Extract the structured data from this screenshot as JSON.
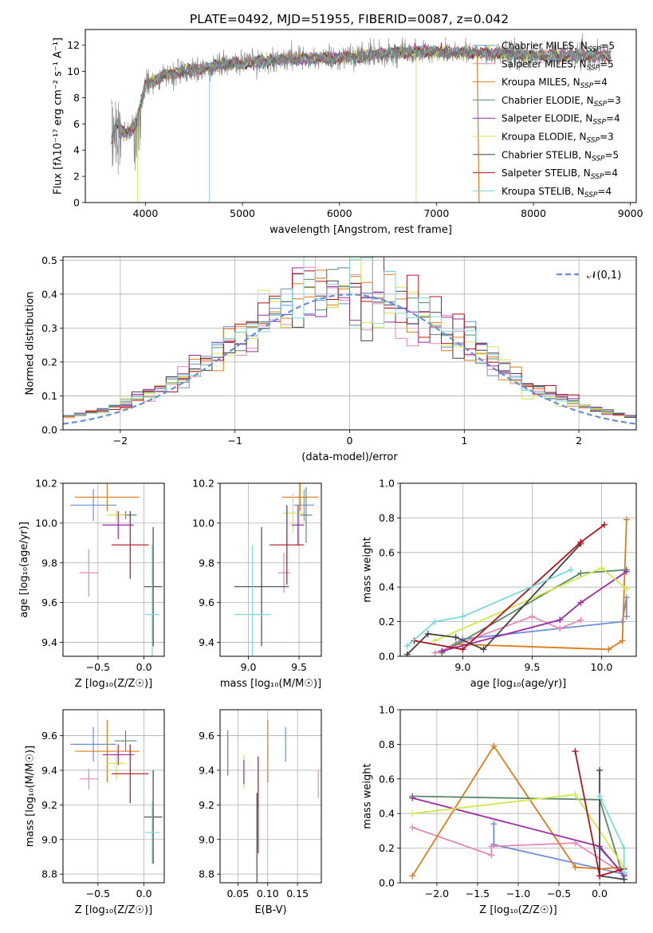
{
  "figure_title": "PLATE=0492, MJD=51955, FIBERID=0087, z=0.042",
  "colors": {
    "Chabrier MILES": "#6b8fd6",
    "Salpeter MILES": "#e687b8",
    "Kroupa MILES": "#e07b1a",
    "Chabrier ELODIE": "#5a8a6a",
    "Salpeter ELODIE": "#9c2aa8",
    "Kroupa ELODIE": "#d4e84a",
    "Chabrier STELIB": "#444444",
    "Salpeter STELIB": "#b0141e",
    "Kroupa STELIB": "#7dd8dc",
    "data": "#808080",
    "gaussian": "#6b8fd6"
  },
  "chart_data": [
    {
      "id": "spectrum",
      "type": "line",
      "title": "PLATE=0492, MJD=51955, FIBERID=0087, z=0.042",
      "xlabel": "wavelength [Angstrom, rest frame]",
      "ylabel": "Flux [fλ10⁻¹⁷ erg cm⁻² s⁻¹ A⁻¹]",
      "xlim": [
        3380,
        9060
      ],
      "ylim": [
        0,
        13.2
      ],
      "xticks": [
        "4000",
        "5000",
        "6000",
        "7000",
        "8000",
        "9000"
      ],
      "yticks": [
        "0",
        "2",
        "4",
        "6",
        "8",
        "10",
        "12"
      ],
      "legend_position": "upper right",
      "legend": [
        "Chabrier MILES, N_SSP=5",
        "Salpeter MILES, N_SSP=5",
        "Kroupa MILES, N_SSP=4",
        "Chabrier ELODIE, N_SSP=3",
        "Salpeter ELODIE, N_SSP=4",
        "Kroupa ELODIE, N_SSP=3",
        "Chabrier STELIB, N_SSP=5",
        "Salpeter STELIB, N_SSP=4",
        "Kroupa STELIB, N_SSP=4"
      ],
      "continuum": [
        [
          3650,
          4.8
        ],
        [
          3700,
          6.0
        ],
        [
          3800,
          5.2
        ],
        [
          3900,
          6.0
        ],
        [
          4000,
          9.0
        ],
        [
          4200,
          9.7
        ],
        [
          4400,
          10.0
        ],
        [
          4600,
          10.2
        ],
        [
          4800,
          10.6
        ],
        [
          5000,
          10.6
        ],
        [
          5500,
          11.0
        ],
        [
          6000,
          11.0
        ],
        [
          6500,
          11.4
        ],
        [
          7000,
          11.5
        ],
        [
          7500,
          11.4
        ],
        [
          8000,
          11.2
        ],
        [
          8500,
          11.2
        ],
        [
          8800,
          11.2
        ]
      ],
      "grid": false
    },
    {
      "id": "residuals",
      "type": "histogram",
      "xlabel": "(data-model)/error",
      "ylabel": "Normed distribution",
      "xlim": [
        -2.5,
        2.5
      ],
      "ylim": [
        0,
        0.51
      ],
      "xticks": [
        "−2",
        "−1",
        "0",
        "1",
        "2"
      ],
      "yticks": [
        "0.0",
        "0.1",
        "0.2",
        "0.3",
        "0.4",
        "0.5"
      ],
      "legend": [
        "𝒩(0,1)"
      ],
      "legend_position": "upper right",
      "grid": true,
      "bin_width": 0.1,
      "bin_start": -2.5
    },
    {
      "id": "age_vs_Z",
      "type": "errorbar",
      "xlabel": "Z [log₁₀(Z/Z☉)]",
      "ylabel": "age  [log₁₀(age/yr)]",
      "xlim": [
        -0.88,
        0.22
      ],
      "ylim": [
        9.33,
        10.2
      ],
      "xticks": [
        "−0.5",
        "0.0"
      ],
      "yticks": [
        "9.4",
        "9.6",
        "9.8",
        "10.0",
        "10.2"
      ],
      "grid": true,
      "points": [
        {
          "model": "Chabrier MILES",
          "x": -0.55,
          "xerr": 0.25,
          "y": 10.09,
          "yerr": 0.08
        },
        {
          "model": "Kroupa MILES",
          "x": -0.4,
          "xerr": 0.35,
          "y": 10.13,
          "yerr": 0.07
        },
        {
          "model": "Chabrier ELODIE",
          "x": -0.2,
          "xerr": 0.12,
          "y": 10.04,
          "yerr": 0.02
        },
        {
          "model": "Kroupa ELODIE",
          "x": -0.3,
          "xerr": 0.1,
          "y": 10.04,
          "yerr": 0.03
        },
        {
          "model": "Salpeter ELODIE",
          "x": -0.28,
          "xerr": 0.17,
          "y": 9.99,
          "yerr": 0.07
        },
        {
          "model": "Salpeter MILES",
          "x": -0.6,
          "xerr": 0.1,
          "y": 9.75,
          "yerr": 0.12
        },
        {
          "model": "Salpeter STELIB",
          "x": -0.15,
          "xerr": 0.2,
          "y": 9.89,
          "yerr": 0.17
        },
        {
          "model": "Chabrier STELIB",
          "x": 0.1,
          "xerr": 0.1,
          "y": 9.68,
          "yerr": 0.3
        },
        {
          "model": "Kroupa STELIB",
          "x": 0.09,
          "xerr": 0.08,
          "y": 9.54,
          "yerr": 0.35
        }
      ]
    },
    {
      "id": "age_vs_mass",
      "type": "errorbar",
      "xlabel": "mass [log₁₀(M/M☉)]",
      "ylabel": "",
      "xlim": [
        8.72,
        9.72
      ],
      "ylim": [
        9.33,
        10.2
      ],
      "xticks": [
        "9.0",
        "9.5"
      ],
      "yticks": [
        "9.4",
        "9.6",
        "9.8",
        "10.0",
        "10.2"
      ],
      "grid": true,
      "points": [
        {
          "model": "Chabrier MILES",
          "x": 9.55,
          "xerr": 0.1,
          "y": 10.09,
          "yerr": 0.08
        },
        {
          "model": "Kroupa MILES",
          "x": 9.51,
          "xerr": 0.18,
          "y": 10.13,
          "yerr": 0.07
        },
        {
          "model": "Chabrier ELODIE",
          "x": 9.57,
          "xerr": 0.06,
          "y": 10.04,
          "yerr": 0.14
        },
        {
          "model": "Kroupa ELODIE",
          "x": 9.44,
          "xerr": 0.1,
          "y": 10.05,
          "yerr": 0.1
        },
        {
          "model": "Salpeter ELODIE",
          "x": 9.49,
          "xerr": 0.06,
          "y": 9.99,
          "yerr": 0.1
        },
        {
          "model": "Salpeter MILES",
          "x": 9.35,
          "xerr": 0.06,
          "y": 9.75,
          "yerr": 0.1
        },
        {
          "model": "Salpeter STELIB",
          "x": 9.38,
          "xerr": 0.17,
          "y": 9.89,
          "yerr": 0.2
        },
        {
          "model": "Chabrier STELIB",
          "x": 9.13,
          "xerr": 0.27,
          "y": 9.68,
          "yerr": 0.3
        },
        {
          "model": "Kroupa STELIB",
          "x": 9.04,
          "xerr": 0.18,
          "y": 9.54,
          "yerr": 0.35
        }
      ]
    },
    {
      "id": "massweight_vs_age",
      "type": "line",
      "xlabel": "age  [log₁₀(age/yr)]",
      "ylabel": "mass weight",
      "xlim": [
        8.55,
        10.25
      ],
      "ylim": [
        0,
        1.0
      ],
      "xticks": [
        "9.0",
        "9.5",
        "10.0"
      ],
      "yticks": [
        "0.0",
        "0.2",
        "0.4",
        "0.6",
        "0.8",
        "1.0"
      ],
      "grid": true,
      "series": [
        {
          "model": "Chabrier MILES",
          "x": [
            8.85,
            9.0,
            10.15,
            10.18,
            10.18
          ],
          "y": [
            0.03,
            0.1,
            0.2,
            0.34,
            0.23
          ]
        },
        {
          "model": "Salpeter MILES",
          "x": [
            8.8,
            9.5,
            9.7,
            9.85
          ],
          "y": [
            0.02,
            0.23,
            0.16,
            0.21
          ]
        },
        {
          "model": "Kroupa MILES",
          "x": [
            8.95,
            10.05,
            10.15,
            10.18
          ],
          "y": [
            0.07,
            0.04,
            0.09,
            0.79
          ]
        },
        {
          "model": "Chabrier ELODIE",
          "x": [
            8.85,
            9.85,
            10.18
          ],
          "y": [
            0.02,
            0.48,
            0.5
          ]
        },
        {
          "model": "Salpeter ELODIE",
          "x": [
            8.85,
            9.7,
            9.85,
            10.18
          ],
          "y": [
            0.03,
            0.21,
            0.31,
            0.49
          ]
        },
        {
          "model": "Kroupa ELODIE",
          "x": [
            8.8,
            10.0,
            10.18
          ],
          "y": [
            0.09,
            0.51,
            0.39
          ]
        },
        {
          "model": "Chabrier STELIB",
          "x": [
            8.6,
            8.75,
            8.95,
            9.15,
            9.85
          ],
          "y": [
            0.01,
            0.13,
            0.11,
            0.04,
            0.65
          ]
        },
        {
          "model": "Salpeter STELIB",
          "x": [
            8.65,
            9.0,
            9.85,
            10.02
          ],
          "y": [
            0.09,
            0.04,
            0.66,
            0.76
          ]
        },
        {
          "model": "Kroupa STELIB",
          "x": [
            8.6,
            8.8,
            9.0,
            9.78
          ],
          "y": [
            0.06,
            0.2,
            0.23,
            0.5
          ]
        }
      ]
    },
    {
      "id": "mass_vs_Z",
      "type": "errorbar",
      "xlabel": "Z [log₁₀(Z/Z☉)]",
      "ylabel": "mass [log₁₀(M/M☉)]",
      "xlim": [
        -0.88,
        0.22
      ],
      "ylim": [
        8.75,
        9.75
      ],
      "xticks": [
        "−0.5",
        "0.0"
      ],
      "yticks": [
        "8.8",
        "9.0",
        "9.2",
        "9.4",
        "9.6"
      ],
      "grid": true,
      "points": [
        {
          "model": "Chabrier MILES",
          "x": -0.55,
          "xerr": 0.25,
          "y": 9.55,
          "yerr": 0.1
        },
        {
          "model": "Kroupa MILES",
          "x": -0.4,
          "xerr": 0.35,
          "y": 9.51,
          "yerr": 0.18
        },
        {
          "model": "Chabrier ELODIE",
          "x": -0.2,
          "xerr": 0.12,
          "y": 9.57,
          "yerr": 0.06
        },
        {
          "model": "Kroupa ELODIE",
          "x": -0.3,
          "xerr": 0.1,
          "y": 9.44,
          "yerr": 0.1
        },
        {
          "model": "Salpeter ELODIE",
          "x": -0.28,
          "xerr": 0.17,
          "y": 9.49,
          "yerr": 0.06
        },
        {
          "model": "Salpeter MILES",
          "x": -0.6,
          "xerr": 0.1,
          "y": 9.35,
          "yerr": 0.06
        },
        {
          "model": "Salpeter STELIB",
          "x": -0.15,
          "xerr": 0.2,
          "y": 9.38,
          "yerr": 0.17
        },
        {
          "model": "Chabrier STELIB",
          "x": 0.1,
          "xerr": 0.1,
          "y": 9.13,
          "yerr": 0.27
        },
        {
          "model": "Kroupa STELIB",
          "x": 0.09,
          "xerr": 0.08,
          "y": 9.04,
          "yerr": 0.18
        }
      ]
    },
    {
      "id": "mass_vs_ebv",
      "type": "errorbar",
      "xlabel": "E(B-V)",
      "ylabel": "",
      "xlim": [
        0.02,
        0.19
      ],
      "ylim": [
        8.75,
        9.75
      ],
      "xticks": [
        "0.05",
        "0.10",
        "0.15"
      ],
      "yticks": [
        "8.8",
        "9.0",
        "9.2",
        "9.4",
        "9.6"
      ],
      "grid": true,
      "points": [
        {
          "model": "Chabrier MILES",
          "x": 0.13,
          "xerr": 0,
          "y": 9.55,
          "yerr": 0.1
        },
        {
          "model": "Kroupa MILES",
          "x": 0.1,
          "xerr": 0,
          "y": 9.51,
          "yerr": 0.18
        },
        {
          "model": "Chabrier ELODIE",
          "x": 0.033,
          "xerr": 0,
          "y": 9.5,
          "yerr": 0.13
        },
        {
          "model": "Kroupa ELODIE",
          "x": 0.06,
          "xerr": 0,
          "y": 9.39,
          "yerr": 0.1
        },
        {
          "model": "Salpeter ELODIE",
          "x": 0.06,
          "xerr": 0,
          "y": 9.39,
          "yerr": 0.07
        },
        {
          "model": "Salpeter MILES",
          "x": 0.185,
          "xerr": 0,
          "y": 9.32,
          "yerr": 0.08
        },
        {
          "model": "Salpeter STELIB",
          "x": 0.084,
          "xerr": 0,
          "y": 9.2,
          "yerr": 0.28
        },
        {
          "model": "Chabrier STELIB",
          "x": 0.082,
          "xerr": 0,
          "y": 9.0,
          "yerr": 0.27
        },
        {
          "model": "Kroupa STELIB",
          "x": 0.081,
          "xerr": 0,
          "y": 8.99,
          "yerr": 0.19
        }
      ]
    },
    {
      "id": "massweight_vs_Z",
      "type": "line",
      "xlabel": "Z [log₁₀(Z/Z☉)]",
      "ylabel": "mass weight",
      "xlim": [
        -2.45,
        0.45
      ],
      "ylim": [
        0,
        1.0
      ],
      "xticks": [
        "−2.0",
        "−1.5",
        "−1.0",
        "−0.5",
        "0.0"
      ],
      "yticks": [
        "0.0",
        "0.2",
        "0.4",
        "0.6",
        "0.8",
        "1.0"
      ],
      "grid": true,
      "series": [
        {
          "model": "Chabrier MILES",
          "x": [
            -1.3,
            -1.3,
            0.3,
            0.0
          ],
          "y": [
            0.34,
            0.22,
            0.05,
            0.2
          ]
        },
        {
          "model": "Salpeter MILES",
          "x": [
            -2.3,
            -1.33,
            -1.33,
            -0.3,
            0.3
          ],
          "y": [
            0.32,
            0.16,
            0.21,
            0.23,
            0.05
          ]
        },
        {
          "model": "Kroupa MILES",
          "x": [
            -2.3,
            -1.3,
            -0.3,
            0.0,
            0.3
          ],
          "y": [
            0.04,
            0.79,
            0.09,
            0.08,
            0.09
          ]
        },
        {
          "model": "Chabrier ELODIE",
          "x": [
            -2.3,
            0.0,
            0.3
          ],
          "y": [
            0.5,
            0.48,
            0.02
          ]
        },
        {
          "model": "Salpeter ELODIE",
          "x": [
            -2.3,
            0.0,
            0.3
          ],
          "y": [
            0.49,
            0.21,
            0.04
          ]
        },
        {
          "model": "Kroupa ELODIE",
          "x": [
            -2.3,
            -0.3,
            0.3
          ],
          "y": [
            0.4,
            0.51,
            0.09
          ]
        },
        {
          "model": "Chabrier STELIB",
          "x": [
            0.0,
            0.0,
            0.3
          ],
          "y": [
            0.65,
            0.04,
            0.02
          ]
        },
        {
          "model": "Salpeter STELIB",
          "x": [
            -0.3,
            0.0,
            0.3
          ],
          "y": [
            0.76,
            0.04,
            0.08
          ]
        },
        {
          "model": "Kroupa STELIB",
          "x": [
            0.0,
            0.3,
            0.3
          ],
          "y": [
            0.5,
            0.2,
            0.06
          ]
        }
      ]
    }
  ]
}
